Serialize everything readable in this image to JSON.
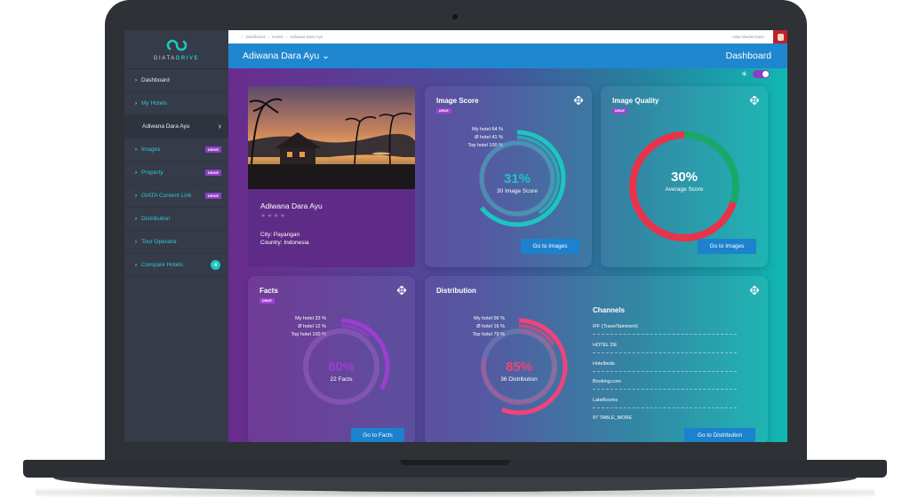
{
  "breadcrumb": [
    "Dashboard",
    "Hotels",
    "Adiwana Dara Ayu"
  ],
  "user": {
    "name": "Max Mustermann"
  },
  "logo": {
    "brand": "GIATA",
    "product": "DRIVE"
  },
  "sidebar": {
    "items": [
      {
        "label": "Dashboard"
      },
      {
        "label": "My Hotels"
      },
      {
        "label": "Adiwana Dara Ayu"
      },
      {
        "label": "Images",
        "tag": "DRIVE"
      },
      {
        "label": "Property",
        "tag": "DRIVE"
      },
      {
        "label": "GIATA Content Link",
        "tag": "DRIVE"
      },
      {
        "label": "Distribution"
      },
      {
        "label": "Tour Operator"
      },
      {
        "label": "Compare Hotels",
        "badge": "4"
      }
    ]
  },
  "header": {
    "hotel_title": "Adiwana Dara Ayu",
    "page_label": "Dashboard"
  },
  "hotel": {
    "name": "Adiwana Dara Ayu",
    "stars": "★★★★",
    "city": "City: Payangan",
    "country": "Country: Indonesia"
  },
  "image_score": {
    "title": "Image Score",
    "tag": "DRIVE",
    "legend": [
      "My hotel 64 %",
      "Ø hotel 41 %",
      "Top hotel 100 %"
    ],
    "value": "31%",
    "sub": "30 Image Score",
    "button": "Go to Images",
    "rings": {
      "my_hotel": 64,
      "avg_hotel": 41,
      "top_hotel": 100
    },
    "color": "#1cc6c0"
  },
  "image_quality": {
    "title": "Image Quality",
    "tag": "DRIVE",
    "value": "30%",
    "sub": "Average Score",
    "button": "Go to Images",
    "share": 30,
    "colors": {
      "positive": "#1aa86a",
      "negative": "#e8334a"
    }
  },
  "facts": {
    "title": "Facts",
    "tag": "DRIVE",
    "legend": [
      "My hotel 33 %",
      "Ø hotel 12 %",
      "Top hotel 100 %"
    ],
    "value": "80%",
    "sub": "22 Facts",
    "button": "Go to Facts",
    "rings": {
      "my_hotel": 33,
      "avg_hotel": 12,
      "top_hotel": 100
    },
    "color": "#9a3fcf"
  },
  "distribution": {
    "title": "Distribution",
    "legend": [
      "My hotel 56 %",
      "Ø hotel 16 %",
      "Top hotel 79 %"
    ],
    "value": "85%",
    "sub": "36 Distribution",
    "button": "Go to Distribution",
    "rings": {
      "my_hotel": 56,
      "avg_hotel": 16,
      "top_hotel": 79
    },
    "color": "#f0437c",
    "channels_title": "Channels",
    "channels": [
      "IFF (TravelTainment)",
      "HOTEL DE",
      "Hotelbeds",
      "Booking.com",
      "LateRooms",
      "97 TABLE_MORE"
    ]
  }
}
